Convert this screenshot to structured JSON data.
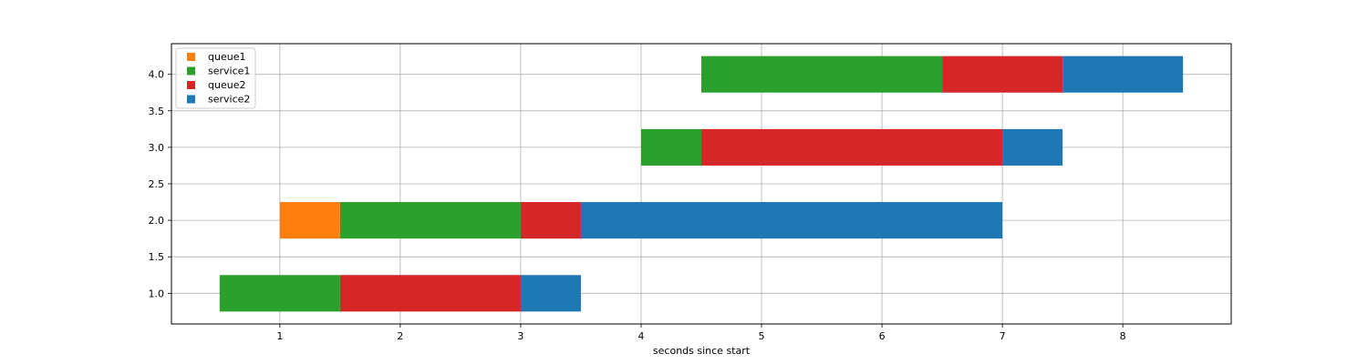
{
  "chart_data": {
    "type": "bar",
    "orientation": "horizontal-stacked",
    "title": "",
    "xlabel": "seconds since start",
    "ylabel": "",
    "xlim": [
      0.1,
      8.9
    ],
    "ylim": [
      0.58,
      4.42
    ],
    "xticks": [
      1,
      2,
      3,
      4,
      5,
      6,
      7,
      8
    ],
    "xtick_labels": [
      "1",
      "2",
      "3",
      "4",
      "5",
      "6",
      "7",
      "8"
    ],
    "yticks": [
      1.0,
      1.5,
      2.0,
      2.5,
      3.0,
      3.5,
      4.0
    ],
    "ytick_labels": [
      "1.0",
      "1.5",
      "2.0",
      "2.5",
      "3.0",
      "3.5",
      "4.0"
    ],
    "grid": true,
    "legend_position": "top-left",
    "bar_height": 0.5,
    "legend": [
      {
        "name": "queue1",
        "color": "#ff7f0e"
      },
      {
        "name": "service1",
        "color": "#2ca02c"
      },
      {
        "name": "queue2",
        "color": "#d62728"
      },
      {
        "name": "service2",
        "color": "#1f77b4"
      }
    ],
    "segments": [
      {
        "y": 1,
        "series": "service1",
        "start": 0.5,
        "end": 1.5
      },
      {
        "y": 1,
        "series": "queue2",
        "start": 1.5,
        "end": 3.0
      },
      {
        "y": 1,
        "series": "service2",
        "start": 3.0,
        "end": 3.5
      },
      {
        "y": 2,
        "series": "queue1",
        "start": 1.0,
        "end": 1.5
      },
      {
        "y": 2,
        "series": "service1",
        "start": 1.5,
        "end": 3.0
      },
      {
        "y": 2,
        "series": "queue2",
        "start": 3.0,
        "end": 3.5
      },
      {
        "y": 2,
        "series": "service2",
        "start": 3.5,
        "end": 7.0
      },
      {
        "y": 3,
        "series": "service1",
        "start": 4.0,
        "end": 4.5
      },
      {
        "y": 3,
        "series": "queue2",
        "start": 4.5,
        "end": 7.0
      },
      {
        "y": 3,
        "series": "service2",
        "start": 7.0,
        "end": 7.5
      },
      {
        "y": 4,
        "series": "service1",
        "start": 4.5,
        "end": 6.5
      },
      {
        "y": 4,
        "series": "queue2",
        "start": 6.5,
        "end": 7.5
      },
      {
        "y": 4,
        "series": "service2",
        "start": 7.5,
        "end": 8.5
      }
    ]
  }
}
